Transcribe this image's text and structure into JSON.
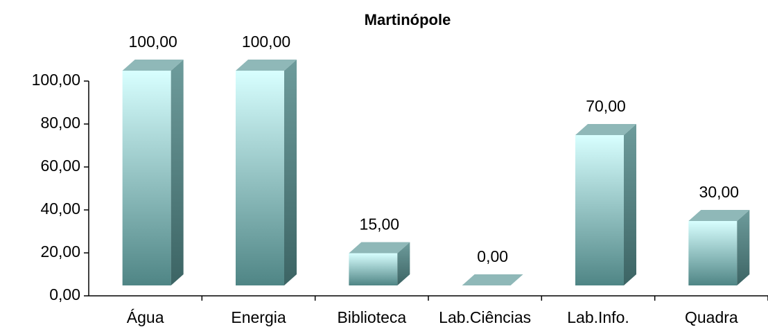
{
  "chart_data": {
    "type": "bar3d",
    "title": "Martinópole",
    "categories": [
      "Água",
      "Energia",
      "Biblioteca",
      "Lab.Ciências",
      "Lab.Info.",
      "Quadra"
    ],
    "values": [
      100,
      100,
      15,
      0,
      70,
      30
    ],
    "value_labels": [
      "100,00",
      "100,00",
      "15,00",
      "0,00",
      "70,00",
      "30,00"
    ],
    "color": "#bff5f5",
    "ylim": [
      0,
      100
    ],
    "yticks": [
      {
        "value": 0,
        "label": "0,00"
      },
      {
        "value": 20,
        "label": "20,00"
      },
      {
        "value": 40,
        "label": "40,00"
      },
      {
        "value": 60,
        "label": "60,00"
      },
      {
        "value": 80,
        "label": "80,00"
      },
      {
        "value": 100,
        "label": "100,00"
      }
    ]
  }
}
